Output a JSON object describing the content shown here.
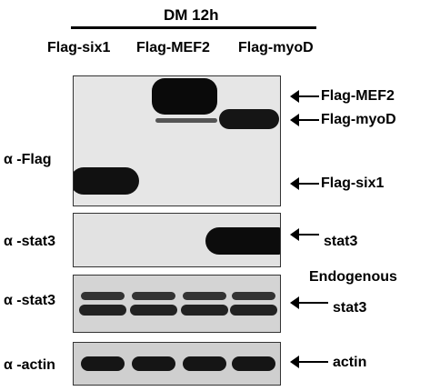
{
  "header": {
    "condition": "DM 12h",
    "lanes": [
      "Flag-six1",
      "Flag-MEF2",
      "Flag-myoD"
    ]
  },
  "panels": [
    {
      "antibody": "α -Flag",
      "labels": [
        "Flag-MEF2",
        "Flag-myoD",
        "Flag-six1"
      ]
    },
    {
      "antibody": "α -stat3",
      "labels": [
        "stat3"
      ]
    },
    {
      "antibody": "α -stat3",
      "labels": [
        "Endogenous",
        "stat3"
      ]
    },
    {
      "antibody": "α -actin",
      "labels": [
        "actin"
      ]
    }
  ]
}
